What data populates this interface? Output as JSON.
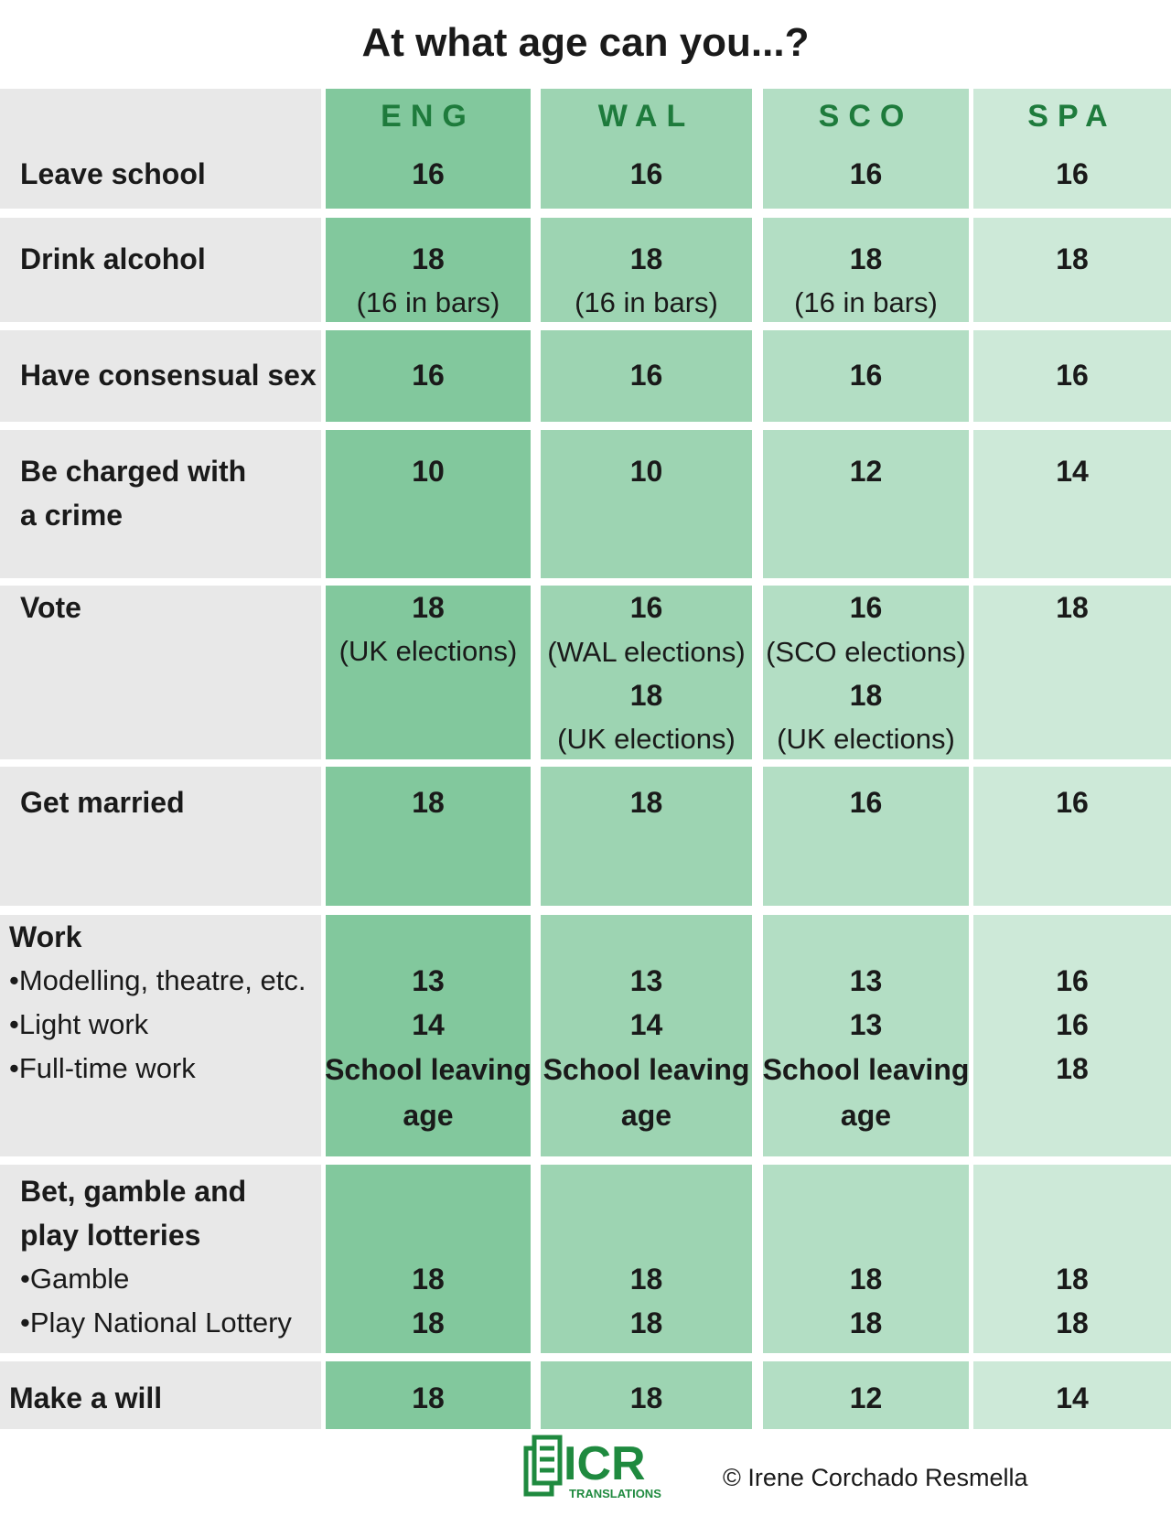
{
  "title": "At what age can you...?",
  "columns": [
    "ENG",
    "WAL",
    "SCO",
    "SPA"
  ],
  "rows": [
    {
      "label": [
        "Leave school"
      ],
      "cells": [
        [
          "16"
        ],
        [
          "16"
        ],
        [
          "16"
        ],
        [
          "16"
        ]
      ]
    },
    {
      "label": [
        "Drink alcohol"
      ],
      "cells": [
        [
          "18",
          "(16 in bars)"
        ],
        [
          "18",
          "(16 in bars)"
        ],
        [
          "18",
          "(16 in bars)"
        ],
        [
          "18"
        ]
      ]
    },
    {
      "label": [
        "Have consensual sex"
      ],
      "cells": [
        [
          "16"
        ],
        [
          "16"
        ],
        [
          "16"
        ],
        [
          "16"
        ]
      ]
    },
    {
      "label": [
        "Be charged with",
        "a crime"
      ],
      "cells": [
        [
          "10"
        ],
        [
          "10"
        ],
        [
          "12"
        ],
        [
          "14"
        ]
      ]
    },
    {
      "label": [
        "Vote"
      ],
      "cells": [
        [
          "18",
          "(UK elections)"
        ],
        [
          "16",
          "(WAL elections)",
          "18",
          "(UK elections)"
        ],
        [
          "16",
          "(SCO elections)",
          "18",
          "(UK elections)"
        ],
        [
          "18"
        ]
      ]
    },
    {
      "label": [
        "Get married"
      ],
      "cells": [
        [
          "18"
        ],
        [
          "18"
        ],
        [
          "16"
        ],
        [
          "16"
        ]
      ]
    },
    {
      "label": [
        "Work",
        "•Modelling, theatre, etc.",
        "•Light work",
        "•Full-time work"
      ],
      "cells": [
        [
          "13",
          "14",
          "School leaving age"
        ],
        [
          "13",
          "14",
          "School leaving age"
        ],
        [
          "13",
          "13",
          "School leaving age"
        ],
        [
          "16",
          "16",
          "18"
        ]
      ]
    },
    {
      "label": [
        "Bet, gamble and",
        "play lotteries",
        "•Gamble",
        "•Play National Lottery"
      ],
      "cells": [
        [
          "18",
          "18"
        ],
        [
          "18",
          "18"
        ],
        [
          "18",
          "18"
        ],
        [
          "18",
          "18"
        ]
      ]
    },
    {
      "label": [
        "Make a will"
      ],
      "cells": [
        [
          "18"
        ],
        [
          "18"
        ],
        [
          "12"
        ],
        [
          "14"
        ]
      ]
    }
  ],
  "footer": {
    "logo": "ICR",
    "logo_sub": "TRANSLATIONS",
    "copyright": "© Irene Corchado Resmella"
  }
}
